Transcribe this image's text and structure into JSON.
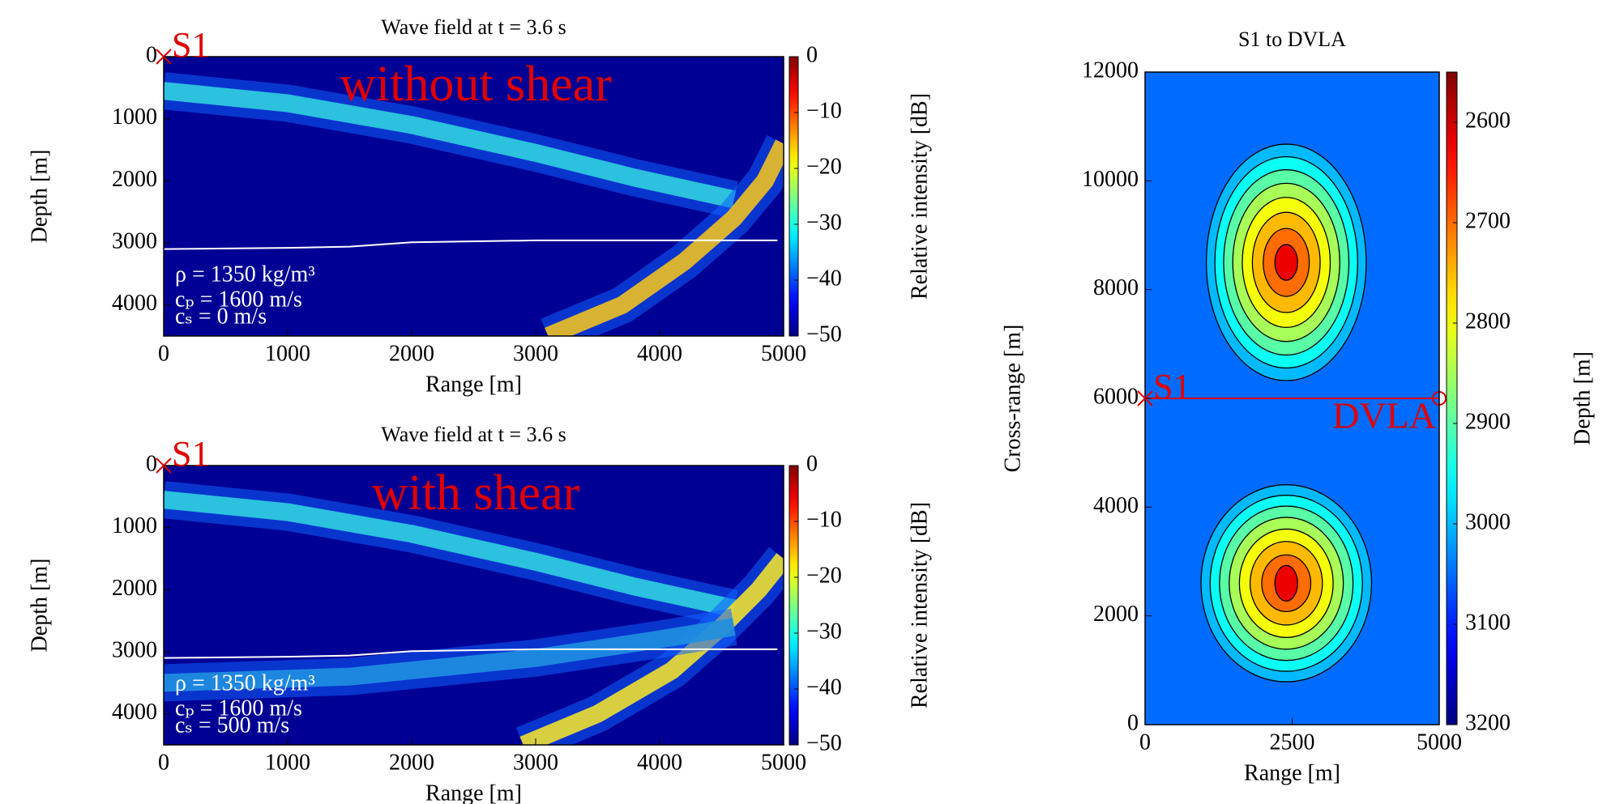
{
  "chart_data": [
    {
      "type": "heatmap",
      "title": "Wave field at t = 3.6 s",
      "x_label": "Range [m]",
      "y_label": "Depth [m]",
      "colorbar_label": "Relative intensity [dB]",
      "annotation": "without shear",
      "xlim": [
        0,
        5000
      ],
      "ylim": [
        4500,
        0
      ],
      "xticks": [
        0,
        1000,
        2000,
        3000,
        4000,
        5000
      ],
      "yticks": [
        0,
        1000,
        2000,
        3000,
        4000
      ],
      "clim": [
        -50,
        0
      ],
      "cticks": [
        0,
        {
          "value": -10,
          "label": "−10"
        },
        {
          "value": -20,
          "label": "−20"
        },
        {
          "value": -30,
          "label": "−30"
        },
        {
          "value": -40,
          "label": "−40"
        },
        {
          "value": -50,
          "label": "−50"
        }
      ],
      "source": {
        "label": "S1",
        "x": 0,
        "y": 0
      },
      "medium_labels": [
        "ρ = 1350 kg/m³",
        "cₚ = 1600 m/s",
        "cₛ = 0 m/s"
      ],
      "seafloor": {
        "x": [
          0,
          1000,
          1500,
          2000,
          3000,
          4000,
          4950
        ],
        "y": [
          3100,
          3080,
          3060,
          2990,
          2960,
          2960,
          2960
        ]
      },
      "series": [
        {
          "color": "#30d0e0",
          "x": [
            0,
            500,
            1000,
            2000,
            3000,
            3800,
            4600
          ],
          "values": [
            550,
            650,
            750,
            1100,
            1550,
            1950,
            2300
          ]
        },
        {
          "color": "#f0c020",
          "x": [
            3100,
            3700,
            4200,
            4600,
            4850,
            5000
          ],
          "values": [
            4500,
            4000,
            3300,
            2600,
            2000,
            1400
          ]
        }
      ]
    },
    {
      "type": "heatmap",
      "title": "Wave field at t = 3.6 s",
      "x_label": "Range [m]",
      "y_label": "Depth [m]",
      "colorbar_label": "Relative intensity [dB]",
      "annotation": "with shear",
      "xlim": [
        0,
        5000
      ],
      "ylim": [
        4500,
        0
      ],
      "xticks": [
        0,
        1000,
        2000,
        3000,
        4000,
        5000
      ],
      "yticks": [
        0,
        1000,
        2000,
        3000,
        4000
      ],
      "clim": [
        -50,
        0
      ],
      "cticks": [
        0,
        {
          "value": -10,
          "label": "−10"
        },
        {
          "value": -20,
          "label": "−20"
        },
        {
          "value": -30,
          "label": "−30"
        },
        {
          "value": -40,
          "label": "−40"
        },
        {
          "value": -50,
          "label": "−50"
        }
      ],
      "source": {
        "label": "S1",
        "x": 0,
        "y": 0
      },
      "medium_labels": [
        "ρ = 1350 kg/m³",
        "cₚ = 1600 m/s",
        "cₛ = 500 m/s"
      ],
      "seafloor": {
        "x": [
          0,
          1000,
          1500,
          2000,
          3000,
          4000,
          4950
        ],
        "y": [
          3100,
          3080,
          3060,
          2990,
          2960,
          2960,
          2960
        ]
      },
      "series": [
        {
          "color": "#30d0e0",
          "x": [
            0,
            500,
            1000,
            2000,
            3000,
            3800,
            4600
          ],
          "values": [
            550,
            650,
            750,
            1100,
            1550,
            1950,
            2300
          ]
        },
        {
          "color": "#f0e030",
          "x": [
            2900,
            3500,
            4100,
            4500,
            4800,
            5000
          ],
          "values": [
            4500,
            4000,
            3300,
            2600,
            2000,
            1500
          ]
        },
        {
          "color": "#2090e0",
          "x": [
            0,
            1500,
            3000,
            4000,
            4600
          ],
          "values": [
            3500,
            3400,
            3100,
            2800,
            2600
          ]
        }
      ]
    },
    {
      "type": "contour",
      "title": "S1 to DVLA",
      "x_label": "Range [m]",
      "y_label": "Cross-range [m]",
      "colorbar_label": "Depth [m]",
      "xlim": [
        0,
        5000
      ],
      "ylim": [
        0,
        12000
      ],
      "xticks": [
        0,
        2500,
        5000
      ],
      "yticks": [
        0,
        2000,
        4000,
        6000,
        8000,
        10000,
        12000
      ],
      "clim": [
        3200,
        2550
      ],
      "cticks": [
        2600,
        2700,
        2800,
        2900,
        3000,
        3100,
        3200
      ],
      "base_depth": 3050,
      "contour_levels": [
        3000,
        2950,
        2900,
        2850,
        2800,
        2750,
        2700,
        2650
      ],
      "hills": [
        {
          "x": 2400,
          "y": 8500,
          "depth": 2620,
          "rx": 1500,
          "ry": 2400
        },
        {
          "x": 2400,
          "y": 2600,
          "depth": 2620,
          "rx": 1600,
          "ry": 2000
        }
      ],
      "source": {
        "label": "S1",
        "x": 0,
        "y": 6000
      },
      "receiver": {
        "label": "DVLA",
        "x": 5000,
        "y": 6000
      }
    }
  ]
}
